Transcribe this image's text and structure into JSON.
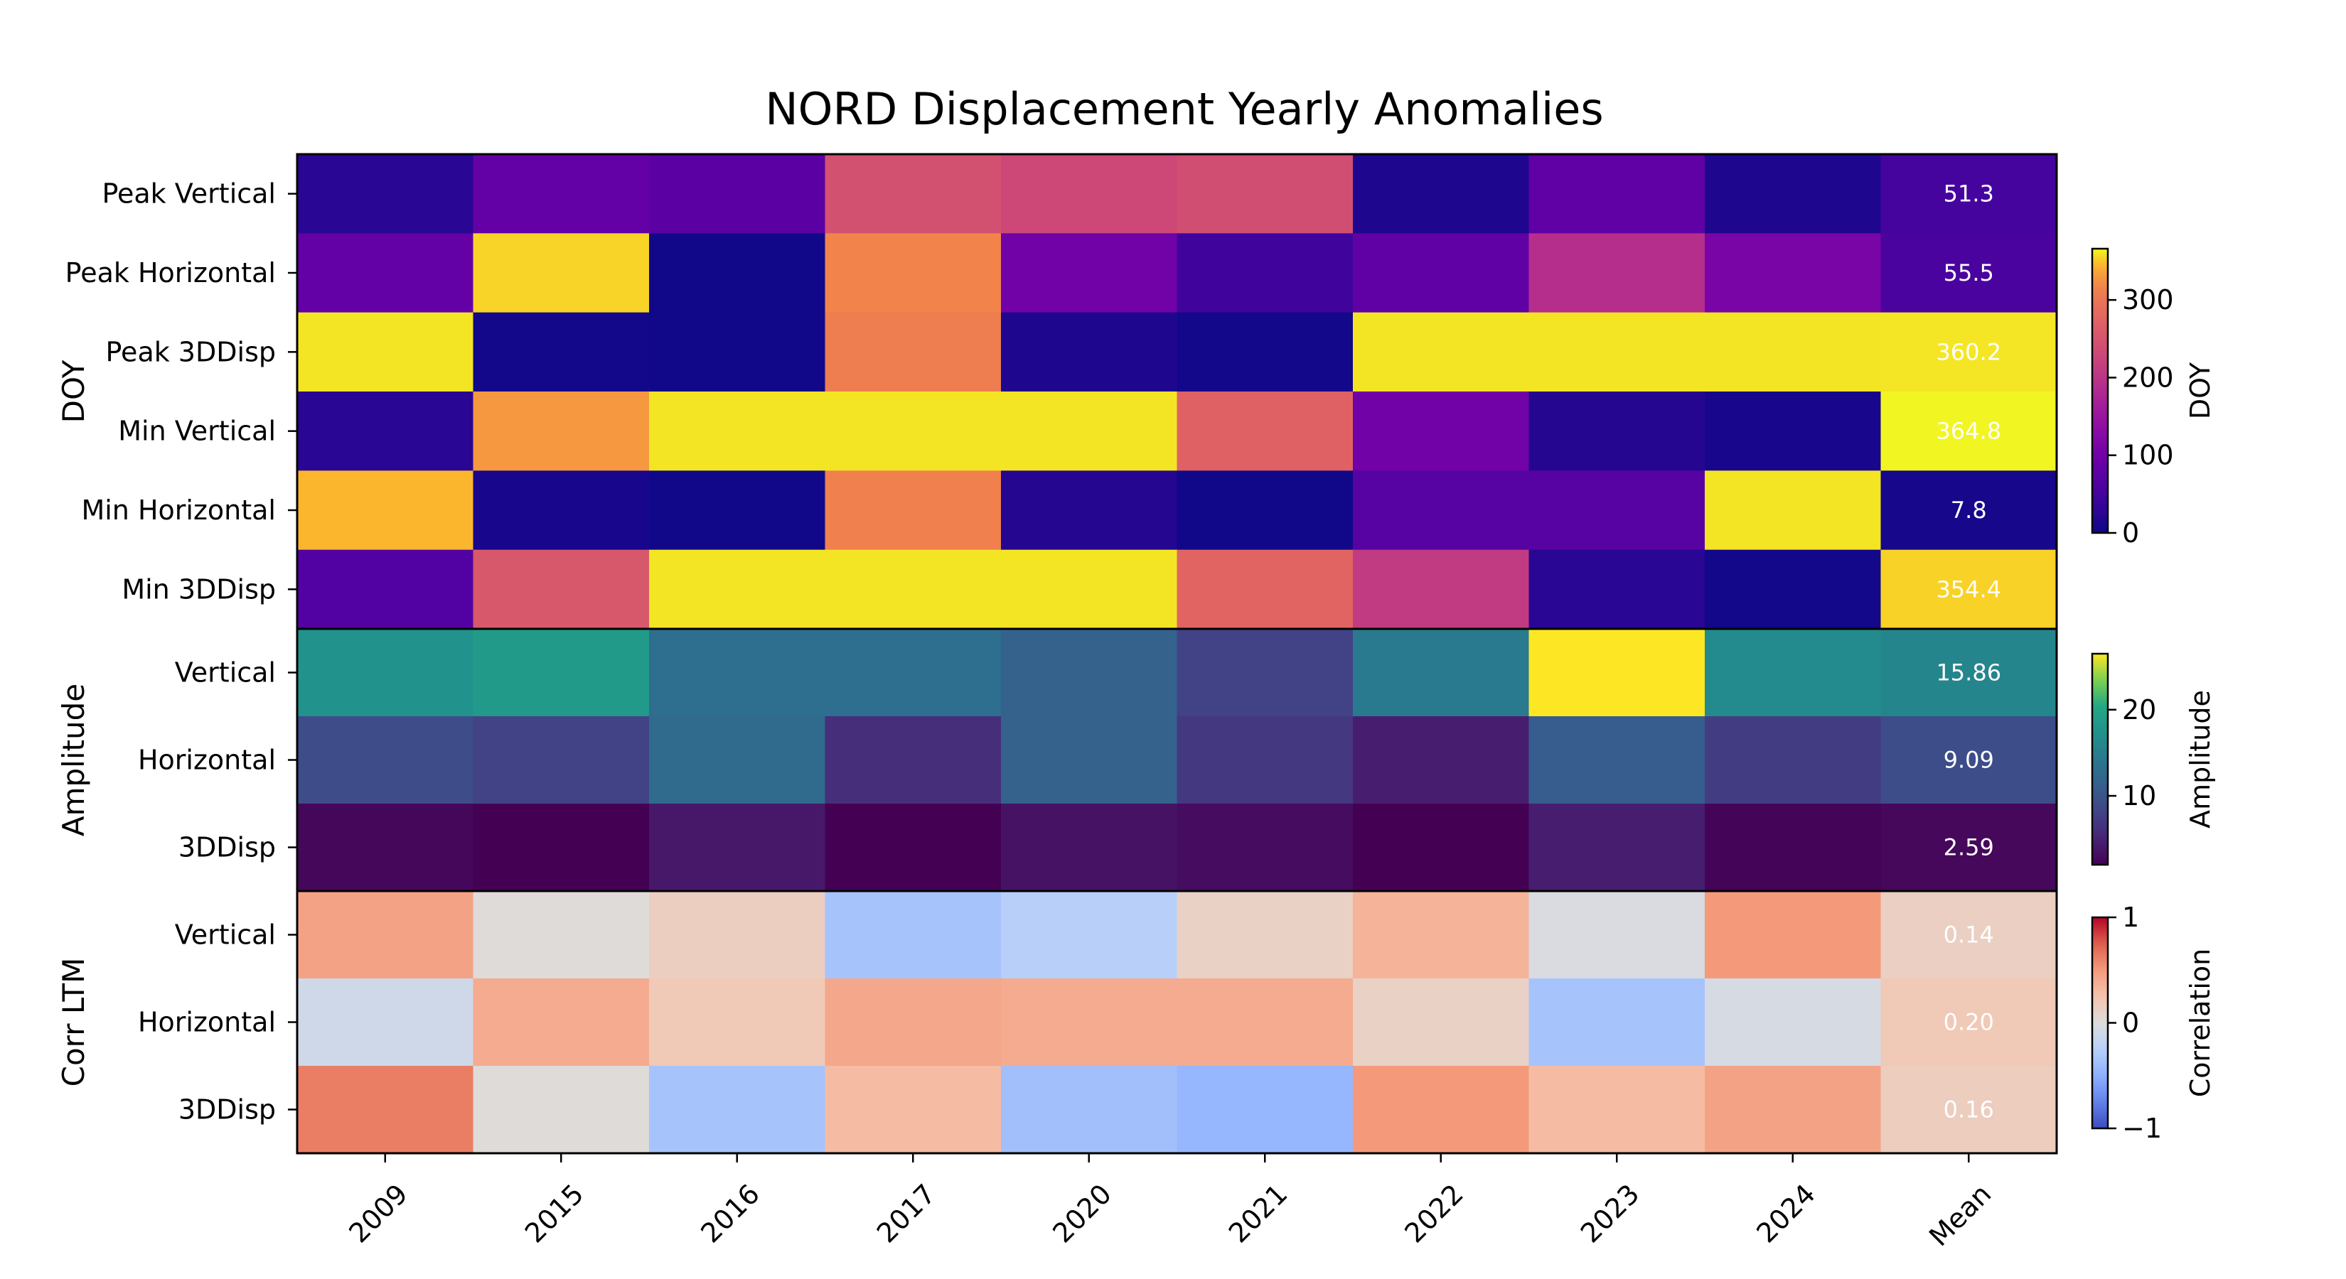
{
  "chart_data": {
    "type": "heatmap",
    "title": "NORD Displacement Yearly Anomalies",
    "columns": [
      "2009",
      "2015",
      "2016",
      "2017",
      "2020",
      "2021",
      "2022",
      "2023",
      "2024",
      "Mean"
    ],
    "groups": [
      {
        "label": "DOY",
        "colormap": "plasma",
        "vmin": 0,
        "vmax": 366,
        "colorbar_label": "DOY",
        "colorbar_ticks": [
          "0",
          "100",
          "200",
          "300"
        ],
        "rows": [
          {
            "label": "Peak Vertical",
            "values": [
              25,
              85,
              75,
              245,
              230,
              240,
              15,
              80,
              15,
              51.3
            ],
            "mean_text": "51.3"
          },
          {
            "label": "Peak Horizontal",
            "values": [
              85,
              355,
              3,
              320,
              100,
              45,
              80,
              190,
              110,
              55.5
            ],
            "mean_text": "55.5"
          },
          {
            "label": "Peak 3DDisp",
            "values": [
              360,
              5,
              3,
              310,
              15,
              5,
              360,
              360,
              360,
              360.2
            ],
            "mean_text": "360.2"
          },
          {
            "label": "Min Vertical",
            "values": [
              25,
              330,
              360,
              360,
              360,
              270,
              100,
              20,
              10,
              364.8
            ],
            "mean_text": "364.8"
          },
          {
            "label": "Min Horizontal",
            "values": [
              345,
              10,
              3,
              315,
              20,
              3,
              70,
              70,
              360,
              7.8
            ],
            "mean_text": "7.8"
          },
          {
            "label": "Min 3DDisp",
            "values": [
              65,
              255,
              360,
              360,
              360,
              275,
              210,
              25,
              5,
              354.4
            ],
            "mean_text": "354.4"
          }
        ]
      },
      {
        "label": "Amplitude",
        "colormap": "viridis",
        "vmin": 2,
        "vmax": 26.5,
        "colorbar_label": "Amplitude",
        "colorbar_ticks": [
          "10",
          "20"
        ],
        "rows": [
          {
            "label": "Vertical",
            "values": [
              17.5,
              18.5,
              13,
              13,
              11.5,
              8,
              14.5,
              26.5,
              16.5,
              15.86
            ],
            "mean_text": "15.86"
          },
          {
            "label": "Horizontal",
            "values": [
              9,
              8,
              12.5,
              6,
              11.5,
              7,
              4.5,
              11,
              7.5,
              9.09
            ],
            "mean_text": "9.09"
          },
          {
            "label": "3DDisp",
            "values": [
              2.5,
              2,
              4,
              2,
              3.5,
              3,
              2,
              4.5,
              2.3,
              2.59
            ],
            "mean_text": "2.59"
          }
        ]
      },
      {
        "label": "Corr LTM",
        "colormap": "coolwarm",
        "vmin": -1,
        "vmax": 1,
        "colorbar_label": "Correlation",
        "colorbar_ticks": [
          "−1",
          "0",
          "1"
        ],
        "rows": [
          {
            "label": "Vertical",
            "values": [
              0.45,
              0.02,
              0.15,
              -0.35,
              -0.25,
              0.12,
              0.35,
              -0.03,
              0.5,
              0.14
            ],
            "mean_text": "0.14"
          },
          {
            "label": "Horizontal",
            "values": [
              -0.1,
              0.4,
              0.2,
              0.42,
              0.4,
              0.4,
              0.12,
              -0.35,
              -0.05,
              0.2
            ],
            "mean_text": "0.20"
          },
          {
            "label": "3DDisp",
            "values": [
              0.62,
              0.02,
              -0.35,
              0.3,
              -0.38,
              -0.45,
              0.5,
              0.3,
              0.45,
              0.16
            ],
            "mean_text": "0.16"
          }
        ]
      }
    ]
  }
}
